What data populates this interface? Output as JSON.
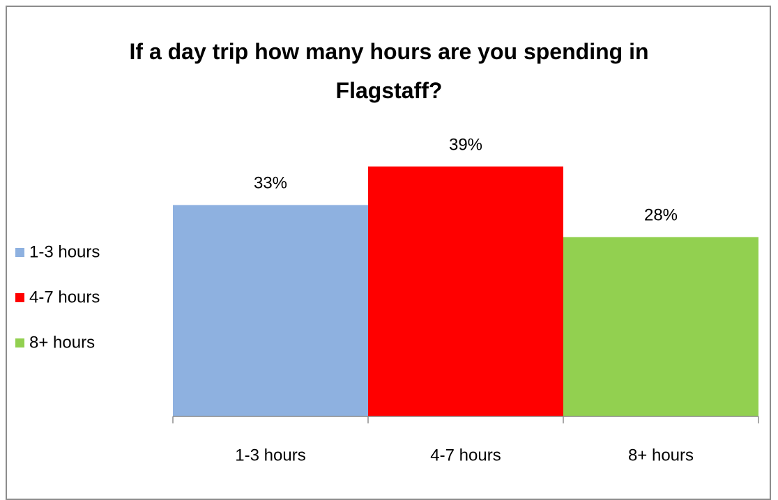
{
  "chart_data": {
    "type": "bar",
    "title": "If a day trip how many hours are you spending in Flagstaff?",
    "categories": [
      "1-3 hours",
      "4-7 hours",
      "8+ hours"
    ],
    "values": [
      33,
      39,
      28
    ],
    "value_labels": [
      "33%",
      "39%",
      "28%"
    ],
    "colors": [
      "#8eb1e0",
      "#ff0000",
      "#92d050"
    ],
    "legend": "left"
  }
}
